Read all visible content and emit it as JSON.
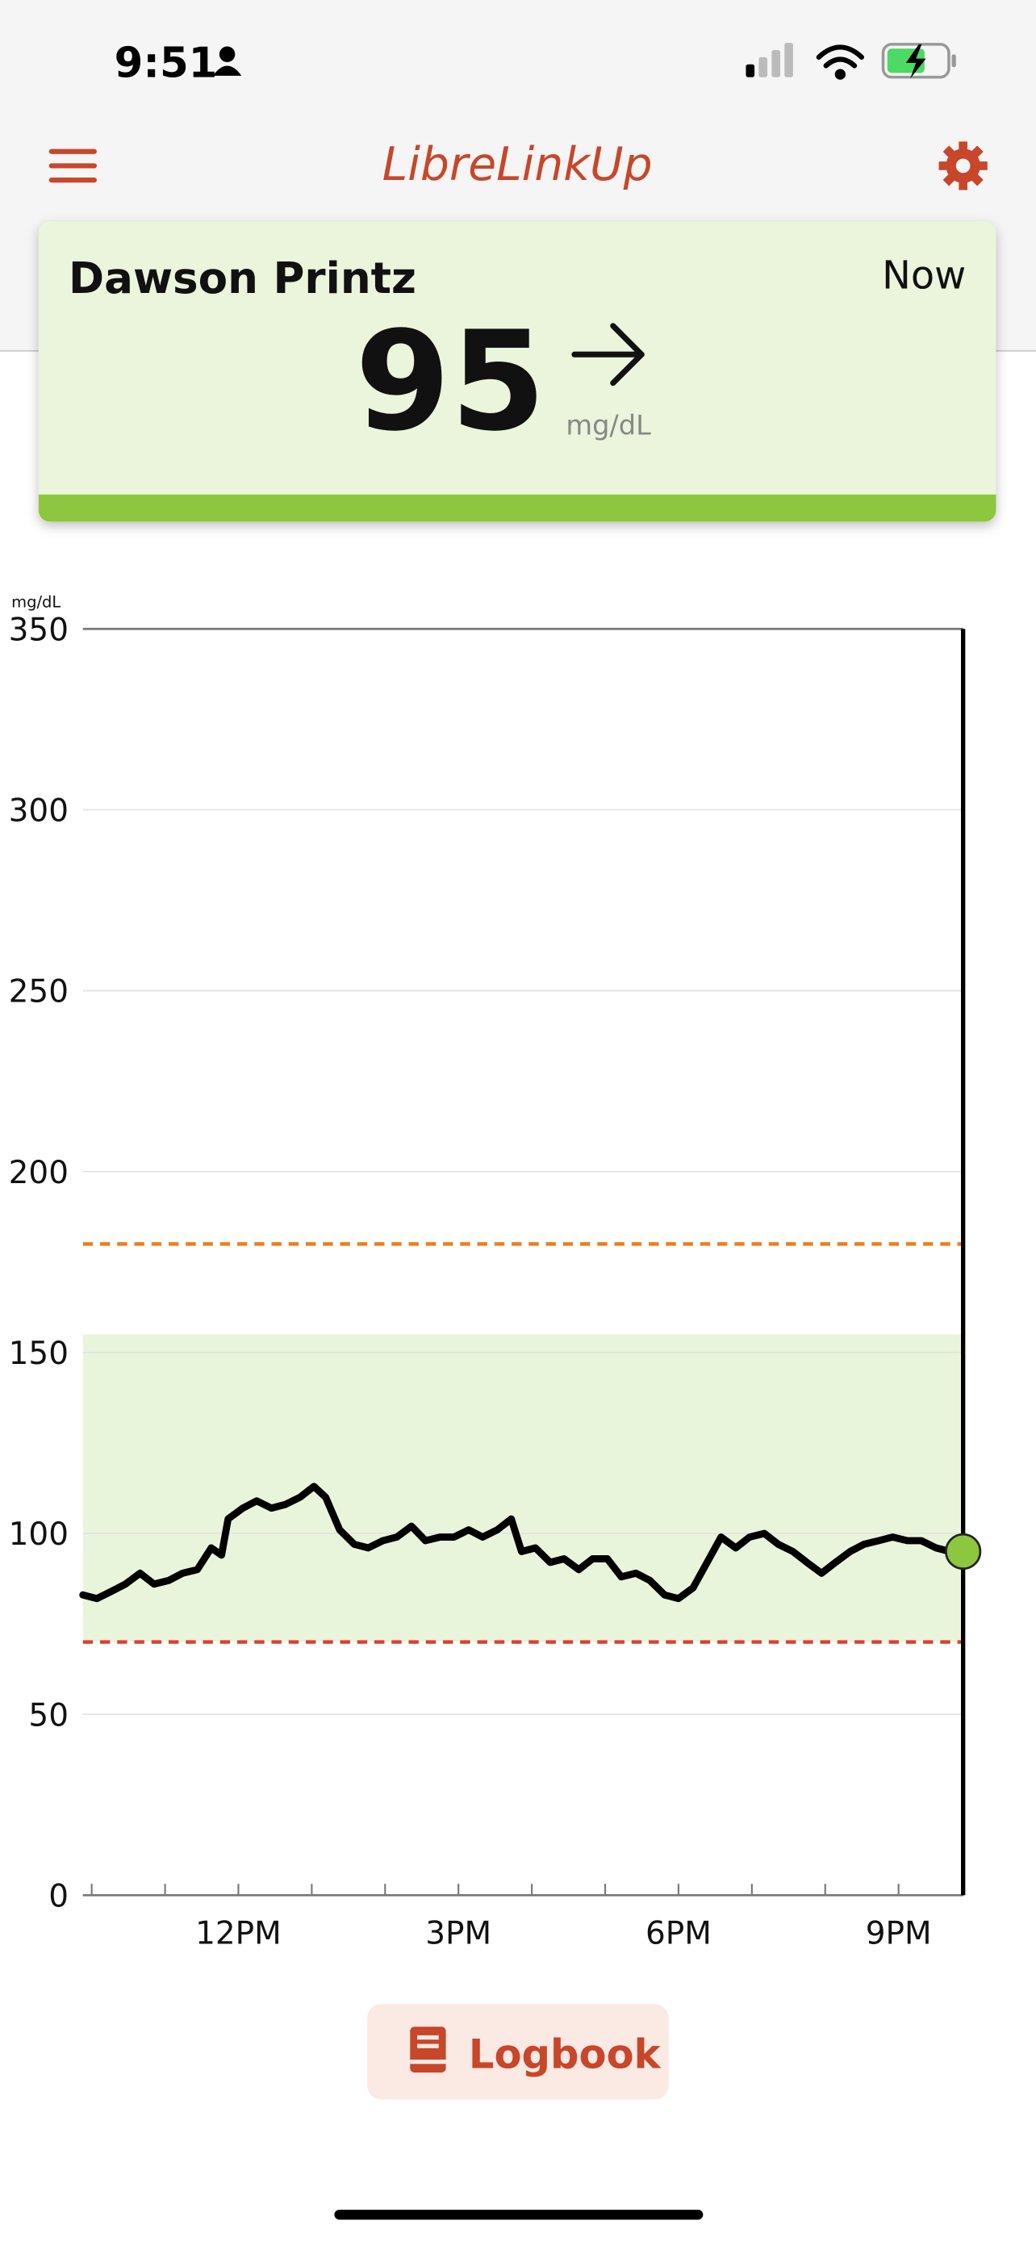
{
  "status_bar": {
    "time": "9:51"
  },
  "header": {
    "title": "LibreLinkUp"
  },
  "patient": {
    "name": "Dawson Printz",
    "time": "Now",
    "glucose": 95,
    "unit": "mg/dL"
  },
  "chart_data": {
    "type": "line",
    "y_label": "mg/dL",
    "x": [
      9.88,
      10.07,
      10.27,
      10.46,
      10.66,
      10.85,
      11.05,
      11.24,
      11.44,
      11.63,
      11.77,
      11.86,
      12.06,
      12.25,
      12.45,
      12.64,
      12.84,
      13.03,
      13.19,
      13.38,
      13.58,
      13.77,
      13.97,
      14.16,
      14.36,
      14.55,
      14.75,
      14.94,
      15.14,
      15.33,
      15.53,
      15.72,
      15.86,
      16.05,
      16.25,
      16.44,
      16.64,
      16.83,
      17.03,
      17.22,
      17.42,
      17.61,
      17.81,
      18.0,
      18.2,
      18.39,
      18.58,
      18.78,
      18.97,
      19.17,
      19.36,
      19.56,
      19.75,
      19.95,
      20.14,
      20.34,
      20.53,
      20.73,
      20.92,
      21.12,
      21.31,
      21.51,
      21.7,
      21.88
    ],
    "series": [
      {
        "color": "#000000",
        "values": [
          83,
          82,
          84,
          86,
          89,
          86,
          87,
          89,
          90,
          96,
          94,
          104,
          107,
          109,
          107,
          108,
          110,
          113,
          110,
          101,
          97,
          96,
          98,
          99,
          102,
          98,
          99,
          99,
          101,
          99,
          101,
          104,
          95,
          96,
          92,
          93,
          90,
          93,
          93,
          88,
          89,
          87,
          83,
          82,
          85,
          92,
          99,
          96,
          99,
          100,
          97,
          95,
          92,
          89,
          92,
          95,
          97,
          98,
          99,
          98,
          98,
          96,
          95,
          95
        ]
      }
    ],
    "current_color": "#8dc63f",
    "xlim": [
      9.88,
      21.88
    ],
    "xticks": [
      {
        "value": 12,
        "label": "12PM"
      },
      {
        "value": 15,
        "label": "3PM"
      },
      {
        "value": 18,
        "label": "6PM"
      },
      {
        "value": 21,
        "label": "9PM"
      }
    ],
    "xminorticks": [
      10,
      11,
      12,
      13,
      14,
      15,
      16,
      17,
      18,
      19,
      20,
      21
    ],
    "ylim": [
      0,
      350
    ],
    "yticks": [
      0,
      50,
      100,
      150,
      200,
      250,
      300,
      350
    ],
    "grid": true,
    "target_range": [
      70,
      155
    ],
    "target_color": "#e8f5da",
    "high_line": 180,
    "high_color": "#f07d1a",
    "low_line": 70,
    "low_color": "#e03c31"
  },
  "logbook_button": {
    "label": "Logbook"
  }
}
